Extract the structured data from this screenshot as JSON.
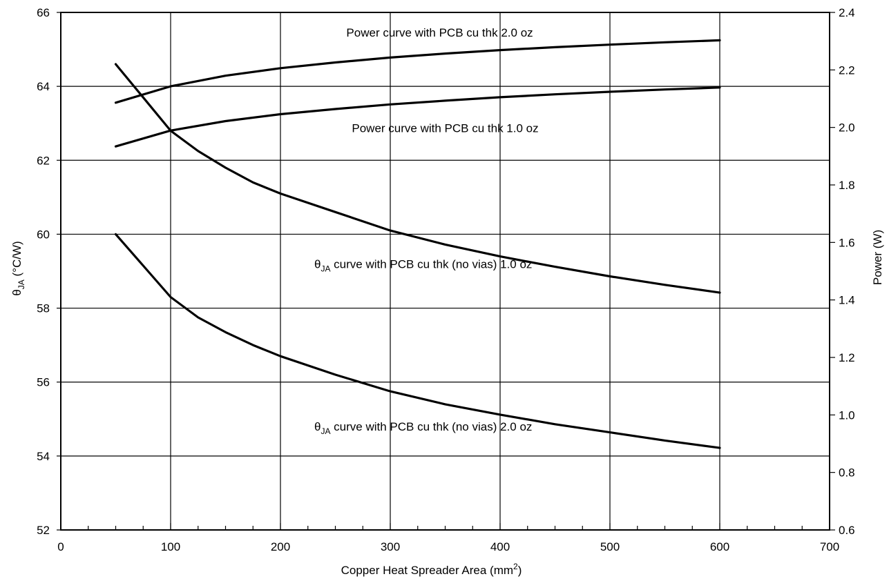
{
  "chart_data": {
    "type": "line",
    "title": "",
    "xlabel": {
      "text": "Copper Heat Spreader Area (mm",
      "sup": "2",
      "suffix": ")"
    },
    "ylabel_left": {
      "theta": "θ",
      "sub": "JA",
      "suffix": " (°C/W)"
    },
    "ylabel_right": "Power (W)",
    "xlim": [
      0,
      700
    ],
    "ylim_left": [
      52,
      66
    ],
    "ylim_right": [
      0.6,
      2.4
    ],
    "grid": true,
    "x_ticks": [
      "0",
      "100",
      "200",
      "300",
      "400",
      "500",
      "600",
      "700"
    ],
    "y_left_ticks": [
      "52",
      "54",
      "56",
      "58",
      "60",
      "62",
      "64",
      "66"
    ],
    "y_right_ticks": [
      "0.6",
      "0.8",
      "1.0",
      "1.2",
      "1.4",
      "1.6",
      "1.8",
      "2.0",
      "2.2",
      "2.4"
    ],
    "series": [
      {
        "axis": "right",
        "label": {
          "text": "Power curve with PCB cu thk 2.0 oz"
        },
        "x": [
          50,
          100,
          150,
          200,
          250,
          300,
          350,
          400,
          450,
          500,
          550,
          600
        ],
        "y": [
          2.086,
          2.143,
          2.18,
          2.206,
          2.226,
          2.243,
          2.257,
          2.269,
          2.279,
          2.288,
          2.296,
          2.303
        ]
      },
      {
        "axis": "right",
        "label": {
          "text": "Power curve with PCB cu thk 1.0 oz"
        },
        "x": [
          50,
          100,
          150,
          200,
          250,
          300,
          350,
          400,
          450,
          500,
          550,
          600
        ],
        "y": [
          1.934,
          1.989,
          2.022,
          2.046,
          2.064,
          2.08,
          2.093,
          2.105,
          2.115,
          2.124,
          2.132,
          2.139
        ]
      },
      {
        "axis": "left",
        "label": {
          "pre": "θ",
          "sub": "JA",
          "text": " curve with PCB cu thk (no vias) 1.0 oz"
        },
        "x": [
          50,
          75,
          100,
          125,
          150,
          175,
          200,
          250,
          300,
          350,
          400,
          450,
          500,
          550,
          600
        ],
        "y": [
          64.6,
          63.7,
          62.8,
          62.25,
          61.8,
          61.4,
          61.1,
          60.6,
          60.1,
          59.72,
          59.4,
          59.12,
          58.86,
          58.63,
          58.42
        ]
      },
      {
        "axis": "left",
        "label": {
          "pre": "θ",
          "sub": "JA",
          "text": " curve with PCB cu thk (no vias) 2.0 oz"
        },
        "x": [
          50,
          75,
          100,
          125,
          150,
          175,
          200,
          250,
          300,
          350,
          400,
          450,
          500,
          550,
          600
        ],
        "y": [
          60.0,
          59.15,
          58.3,
          57.75,
          57.35,
          57.0,
          56.7,
          56.2,
          55.75,
          55.4,
          55.12,
          54.86,
          54.64,
          54.42,
          54.22
        ]
      }
    ]
  }
}
